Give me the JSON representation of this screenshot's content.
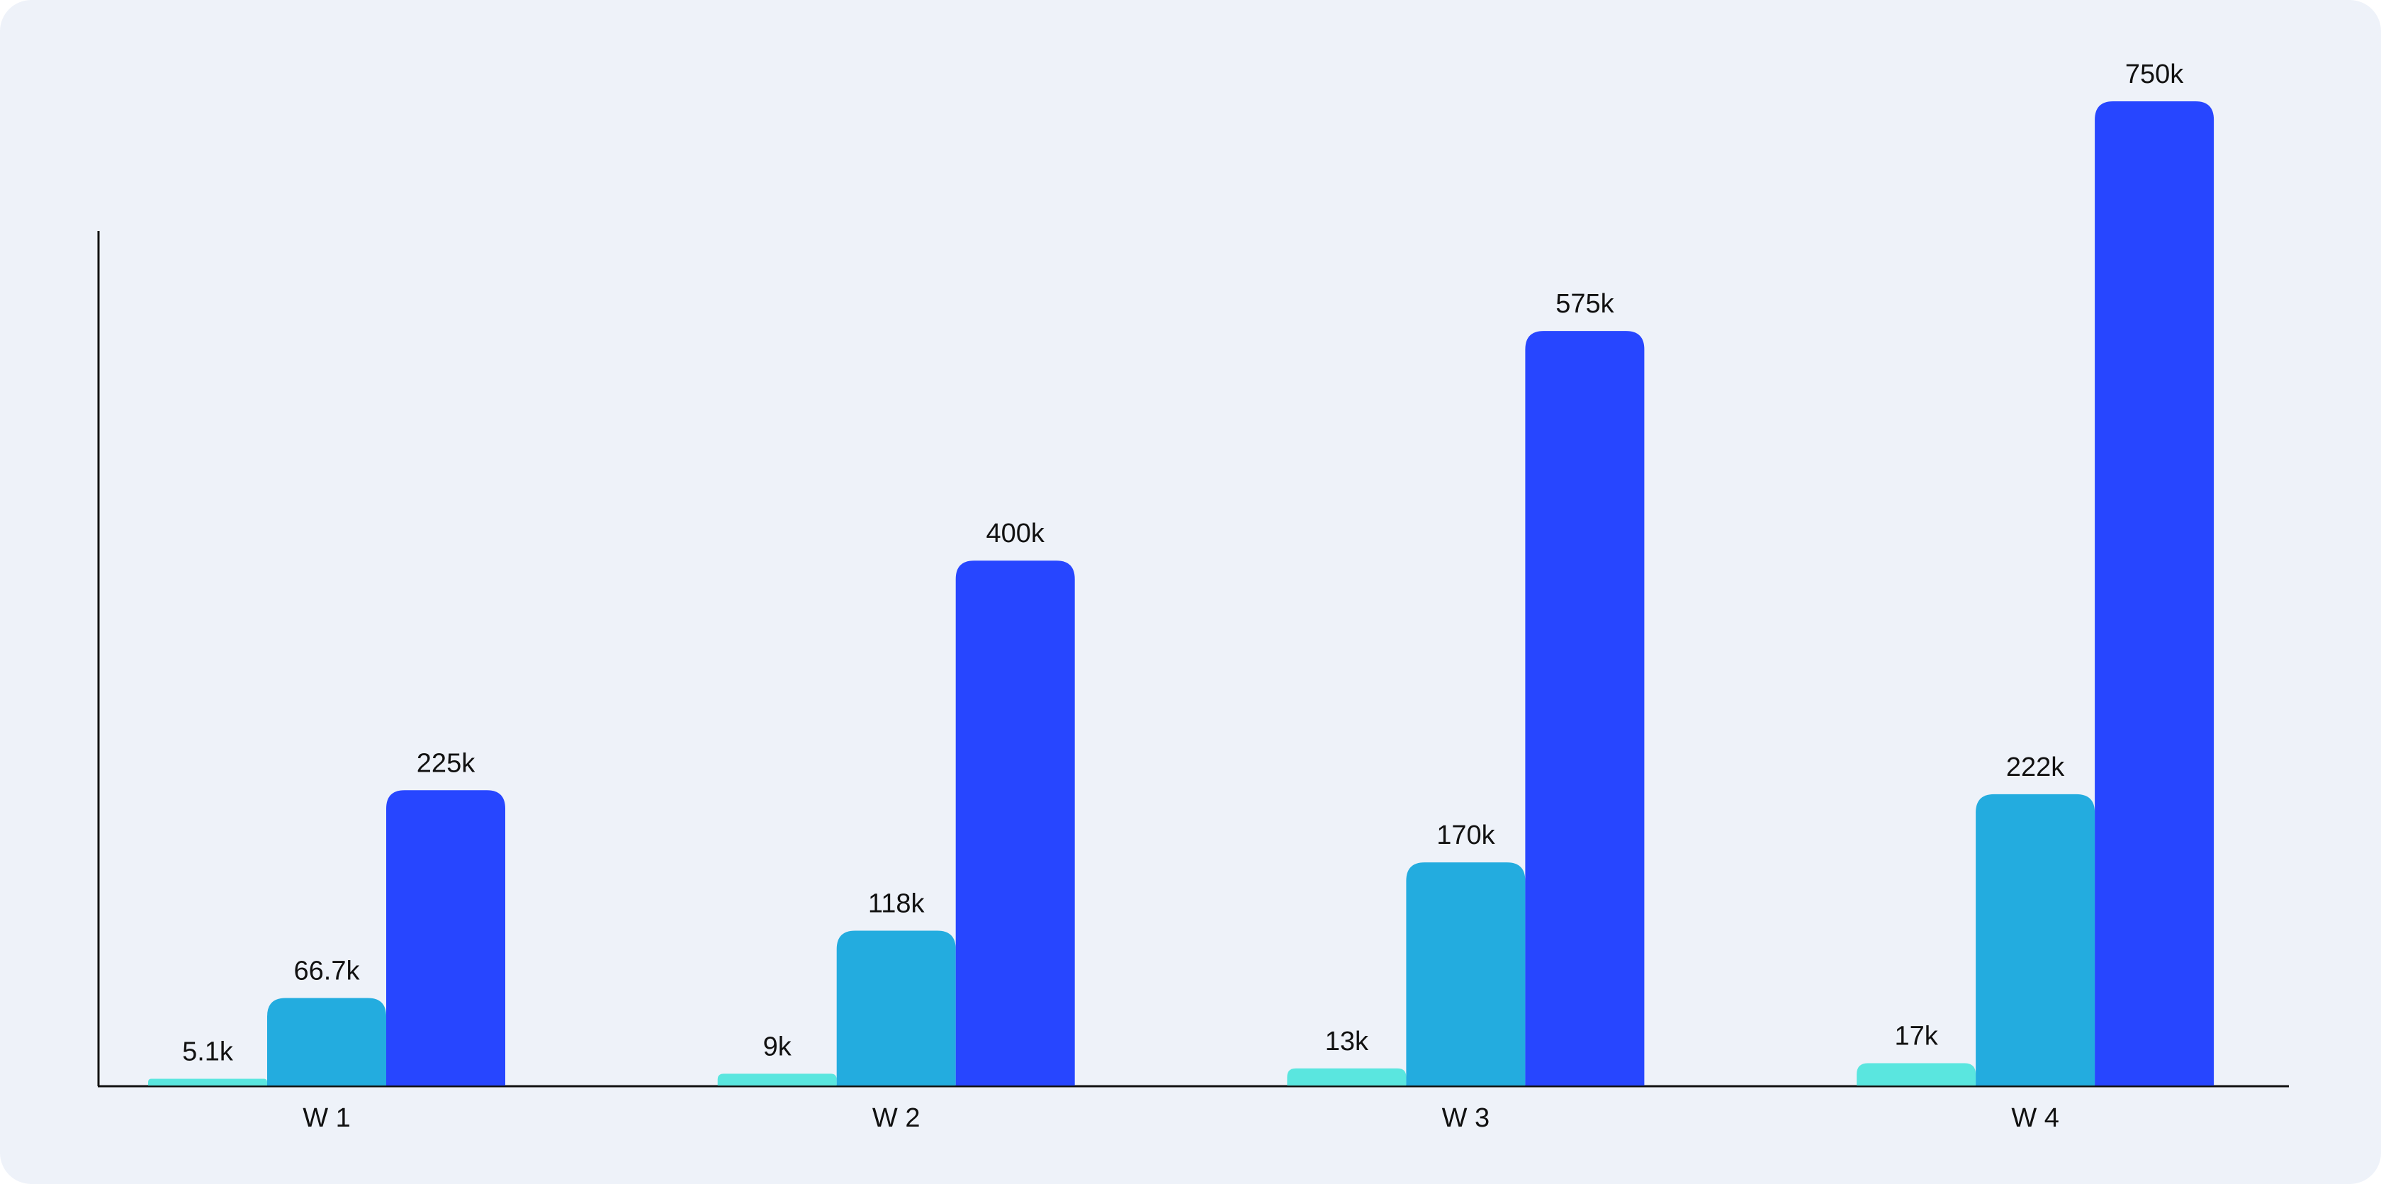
{
  "chart_data": {
    "type": "bar",
    "categories": [
      "W 1",
      "W 2",
      "W 3",
      "W 4"
    ],
    "series": [
      {
        "color": "#5ae6df",
        "values": [
          5100,
          9000,
          13000,
          17000
        ],
        "value_labels": [
          "5.1k",
          "9k",
          "13k",
          "17k"
        ]
      },
      {
        "color": "#23acdf",
        "values": [
          66700,
          118000,
          170000,
          222000
        ],
        "value_labels": [
          "66.7k",
          "118k",
          "170k",
          "222k"
        ]
      },
      {
        "color": "#2746ff",
        "values": [
          225000,
          400000,
          575000,
          750000
        ],
        "value_labels": [
          "225k",
          "400k",
          "575k",
          "750k"
        ]
      }
    ]
  }
}
